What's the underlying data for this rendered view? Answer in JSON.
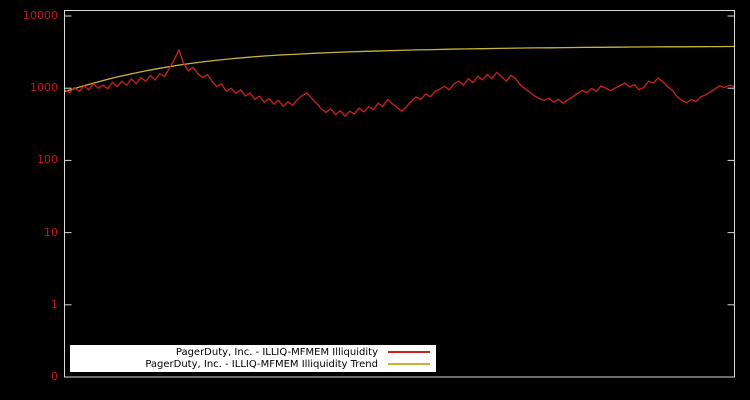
{
  "colors": {
    "background": "#000000",
    "axis_border": "#d9d9d9",
    "tick_label": "#cc1414",
    "series_color": "#cf1f1f",
    "trend_color": "#c9b23a",
    "legend_bg": "#ffffff",
    "legend_text": "#000000"
  },
  "y_axis": {
    "tick_labels": [
      "10000",
      "1000",
      "100",
      "10",
      "1",
      "0"
    ]
  },
  "legend": {
    "entries": [
      {
        "label": "PagerDuty, Inc. - ILLIQ-MFMEM Illiquidity",
        "color_key": "series_color"
      },
      {
        "label": "PagerDuty, Inc. - ILLIQ-MFMEM Illiquidity Trend",
        "color_key": "trend_color"
      }
    ]
  },
  "chart_data": {
    "type": "line",
    "title": "",
    "xlabel": "",
    "ylabel": "",
    "y_scale": "log",
    "ylim": [
      0.1,
      10000
    ],
    "y_ticks": [
      10000,
      1000,
      100,
      10,
      1,
      0
    ],
    "grid": false,
    "legend_position": "bottom-left",
    "series": [
      {
        "name": "PagerDuty, Inc. - ILLIQ-MFMEM Illiquidity",
        "color": "#cf1f1f",
        "values": [
          950,
          870,
          1020,
          900,
          1080,
          950,
          1150,
          1000,
          1100,
          980,
          1200,
          1050,
          1250,
          1100,
          1350,
          1150,
          1400,
          1250,
          1500,
          1300,
          1600,
          1450,
          1900,
          2450,
          3400,
          2200,
          1750,
          1950,
          1600,
          1400,
          1550,
          1250,
          1050,
          1150,
          900,
          1000,
          850,
          950,
          780,
          860,
          700,
          780,
          640,
          720,
          600,
          680,
          560,
          650,
          580,
          700,
          790,
          860,
          720,
          620,
          520,
          460,
          520,
          430,
          490,
          410,
          480,
          440,
          530,
          470,
          560,
          500,
          620,
          560,
          700,
          610,
          540,
          480,
          560,
          660,
          760,
          700,
          830,
          760,
          910,
          970,
          1060,
          950,
          1150,
          1260,
          1100,
          1360,
          1200,
          1460,
          1300,
          1560,
          1350,
          1660,
          1450,
          1250,
          1510,
          1350,
          1100,
          980,
          880,
          780,
          720,
          680,
          730,
          640,
          700,
          620,
          690,
          760,
          850,
          930,
          870,
          990,
          910,
          1080,
          1000,
          920,
          1010,
          1090,
          1180,
          1040,
          1120,
          950,
          1030,
          1250,
          1180,
          1380,
          1230,
          1050,
          940,
          760,
          680,
          630,
          700,
          650,
          760,
          810,
          890,
          980,
          1080,
          1020,
          1100,
          1060
        ]
      },
      {
        "name": "PagerDuty, Inc. - ILLIQ-MFMEM Illiquidity Trend",
        "color": "#c9b23a",
        "values": [
          900,
          1060,
          1230,
          1410,
          1590,
          1770,
          1950,
          2120,
          2280,
          2430,
          2570,
          2690,
          2800,
          2890,
          2970,
          3050,
          3120,
          3180,
          3240,
          3290,
          3340,
          3390,
          3430,
          3470,
          3500,
          3530,
          3560,
          3590,
          3610,
          3630,
          3650,
          3670,
          3690,
          3700,
          3720,
          3730,
          3740,
          3750,
          3760,
          3770,
          3780
        ]
      }
    ]
  }
}
